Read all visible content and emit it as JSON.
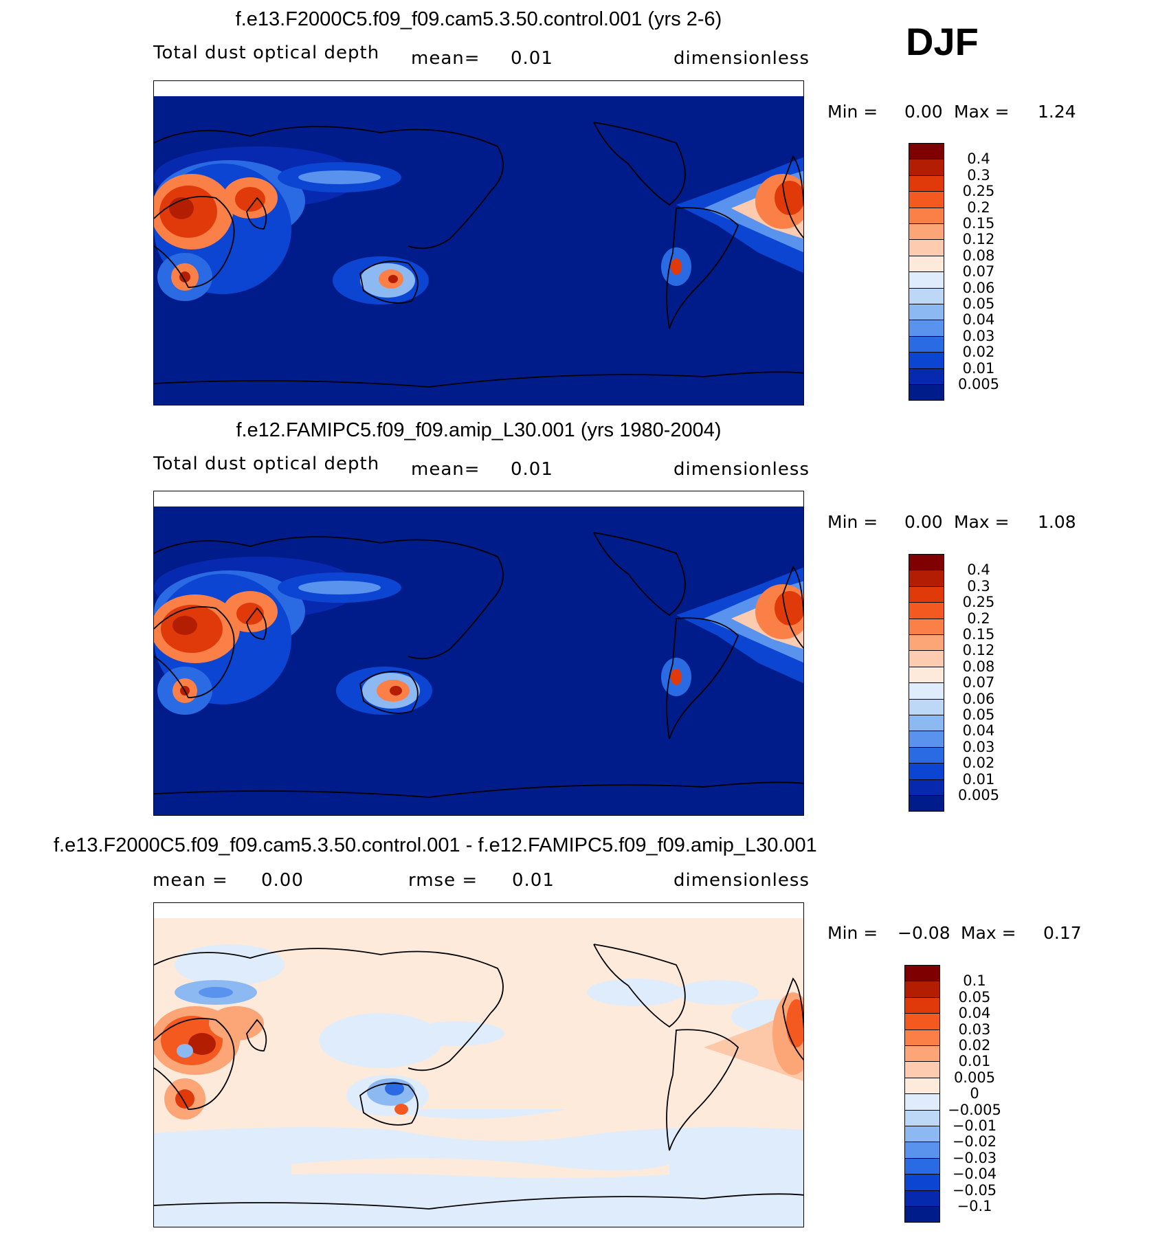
{
  "season": "DJF",
  "panels": [
    {
      "title": "f.e13.F2000C5.f09_f09.cam5.3.50.control.001 (yrs 2-6)",
      "variable": "Total dust optical depth",
      "stat1_label": "mean=",
      "stat1_value": "0.01",
      "units": "dimensionless",
      "min_label": "Min =",
      "min_value": "0.00",
      "max_label": "Max =",
      "max_value": "1.24",
      "colorbar_labels": [
        "0.4",
        "0.3",
        "0.25",
        "0.2",
        "0.15",
        "0.12",
        "0.08",
        "0.07",
        "0.06",
        "0.05",
        "0.04",
        "0.03",
        "0.02",
        "0.01",
        "0.005"
      ],
      "colorbar_colors": [
        "#7f0000",
        "#b31e03",
        "#e03a0a",
        "#f45a20",
        "#fa8048",
        "#fca678",
        "#fdcbb0",
        "#feeadb",
        "#deecfb",
        "#bdd7f7",
        "#8db9f3",
        "#5a93ee",
        "#2a6be3",
        "#0b45d2",
        "#0629b0",
        "#001b8a"
      ]
    },
    {
      "title": "f.e12.FAMIPC5.f09_f09.amip_L30.001 (yrs 1980-2004)",
      "variable": "Total dust optical depth",
      "stat1_label": "mean=",
      "stat1_value": "0.01",
      "units": "dimensionless",
      "min_label": "Min =",
      "min_value": "0.00",
      "max_label": "Max =",
      "max_value": "1.08",
      "colorbar_labels": [
        "0.4",
        "0.3",
        "0.25",
        "0.2",
        "0.15",
        "0.12",
        "0.08",
        "0.07",
        "0.06",
        "0.05",
        "0.04",
        "0.03",
        "0.02",
        "0.01",
        "0.005"
      ],
      "colorbar_colors": [
        "#7f0000",
        "#b31e03",
        "#e03a0a",
        "#f45a20",
        "#fa8048",
        "#fca678",
        "#fdcbb0",
        "#feeadb",
        "#deecfb",
        "#bdd7f7",
        "#8db9f3",
        "#5a93ee",
        "#2a6be3",
        "#0b45d2",
        "#0629b0",
        "#001b8a"
      ]
    },
    {
      "title": "f.e13.F2000C5.f09_f09.cam5.3.50.control.001 - f.e12.FAMIPC5.f09_f09.amip_L30.001",
      "stat1_label": "mean =",
      "stat1_value": "0.00",
      "stat2_label": "rmse =",
      "stat2_value": "0.01",
      "units": "dimensionless",
      "min_label": "Min =",
      "min_value": "−0.08",
      "max_label": "Max =",
      "max_value": "0.17",
      "colorbar_labels": [
        "0.1",
        "0.05",
        "0.04",
        "0.03",
        "0.02",
        "0.01",
        "0.005",
        "0",
        "−0.005",
        "−0.01",
        "−0.02",
        "−0.03",
        "−0.04",
        "−0.05",
        "−0.1"
      ],
      "colorbar_colors": [
        "#7f0000",
        "#b31e03",
        "#e03a0a",
        "#f45a20",
        "#fa8048",
        "#fca678",
        "#fdcbb0",
        "#feeadb",
        "#deecfb",
        "#bdd7f7",
        "#8db9f3",
        "#5a93ee",
        "#2a6be3",
        "#0b45d2",
        "#0629b0",
        "#001b8a"
      ]
    }
  ]
}
